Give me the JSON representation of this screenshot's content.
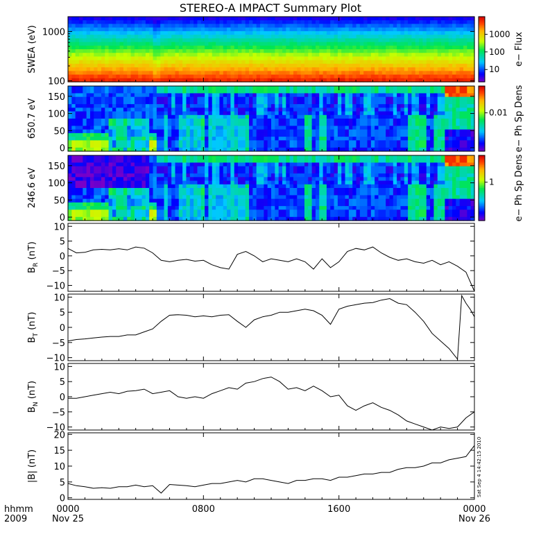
{
  "title": "STEREO-A IMPACT Summary Plot",
  "time_axis": {
    "corner_label_top": "hhmm",
    "corner_label_bottom": "2009",
    "ticks": [
      {
        "t": 0,
        "top": "0000",
        "bottom": "Nov 25"
      },
      {
        "t": 0.3333,
        "top": "0800",
        "bottom": ""
      },
      {
        "t": 0.6667,
        "top": "1600",
        "bottom": ""
      },
      {
        "t": 1,
        "top": "0000",
        "bottom": "Nov 26"
      }
    ]
  },
  "timestamp": "Sat Sep  4 14:42:15 2010",
  "colors": {
    "line": "#000000",
    "frame": "#000000",
    "background": "#ffffff"
  },
  "chart_data": [
    {
      "type": "heatmap",
      "name": "swea",
      "ylabel": "SWEA (eV)",
      "yscale": "log",
      "ylim": [
        95,
        2000
      ],
      "yticks": [
        {
          "v": 100,
          "label": "100"
        },
        {
          "v": 1000,
          "label": "1000"
        }
      ],
      "colorbar": {
        "label": "e− Flux",
        "scale": "log",
        "range": [
          2,
          10000
        ],
        "ticks": [
          {
            "v": 10,
            "label": "10"
          },
          {
            "v": 100,
            "label": "100"
          },
          {
            "v": 1000,
            "label": "1000"
          }
        ]
      }
    },
    {
      "type": "heatmap",
      "name": "pad650",
      "ylabel": "650.7 eV",
      "ylim": [
        -10,
        180
      ],
      "yticks": [
        {
          "v": 0,
          "label": "0"
        },
        {
          "v": 50,
          "label": "50"
        },
        {
          "v": 100,
          "label": "100"
        },
        {
          "v": 150,
          "label": "150"
        }
      ],
      "colorbar": {
        "label": "e− Ph Sp Dens",
        "scale": "log",
        "range": [
          0.001,
          0.05
        ],
        "ticks": [
          {
            "v": 0.01,
            "label": "0.01"
          }
        ]
      }
    },
    {
      "type": "heatmap",
      "name": "pad246",
      "ylabel": "246.6 eV",
      "ylim": [
        -10,
        180
      ],
      "yticks": [
        {
          "v": 0,
          "label": "0"
        },
        {
          "v": 50,
          "label": "50"
        },
        {
          "v": 100,
          "label": "100"
        },
        {
          "v": 150,
          "label": "150"
        }
      ],
      "colorbar": {
        "label": "e− Ph Sp Dens",
        "scale": "log",
        "range": [
          0.1,
          5
        ],
        "ticks": [
          {
            "v": 1,
            "label": "1"
          }
        ]
      }
    },
    {
      "type": "line",
      "name": "br",
      "ylabel": "B",
      "ylabel_sub": "R",
      "ylabel_unit": "(nT)",
      "ylim": [
        -12,
        11
      ],
      "yticks": [
        {
          "v": -10,
          "label": "−10"
        },
        {
          "v": -5,
          "label": "−5"
        },
        {
          "v": 0,
          "label": "0"
        },
        {
          "v": 5,
          "label": "5"
        },
        {
          "v": 10,
          "label": "10"
        }
      ],
      "x_hours": [
        0,
        0.5,
        1,
        1.5,
        2,
        2.5,
        3,
        3.5,
        4,
        4.5,
        5,
        5.5,
        6,
        6.5,
        7,
        7.5,
        8,
        8.5,
        9,
        9.5,
        10,
        10.5,
        11,
        11.5,
        12,
        12.5,
        13,
        13.5,
        14,
        14.5,
        15,
        15.5,
        16,
        16.5,
        17,
        17.5,
        18,
        18.5,
        19,
        19.5,
        20,
        20.5,
        21,
        21.5,
        22,
        22.5,
        23,
        23.5,
        24
      ],
      "values": [
        2.5,
        1,
        1.2,
        2.0,
        2.2,
        2.0,
        2.4,
        2.0,
        3.0,
        2.6,
        1.0,
        -1.5,
        -2.0,
        -1.5,
        -1.2,
        -1.8,
        -1.5,
        -3.0,
        -4.0,
        -4.5,
        0.5,
        1.5,
        0.0,
        -2.0,
        -1.0,
        -1.5,
        -2.0,
        -1.0,
        -2.0,
        -4.5,
        -1.0,
        -4.0,
        -2.0,
        1.5,
        2.5,
        2.0,
        3.0,
        1.0,
        -0.5,
        -1.5,
        -1.0,
        -2.0,
        -2.5,
        -1.5,
        -3.0,
        -2.0,
        -3.5,
        -5.5,
        -12.0
      ]
    },
    {
      "type": "line",
      "name": "bt",
      "ylabel": "B",
      "ylabel_sub": "T",
      "ylabel_unit": "(nT)",
      "ylim": [
        -11,
        11
      ],
      "yticks": [
        {
          "v": -10,
          "label": "−10"
        },
        {
          "v": -5,
          "label": "−5"
        },
        {
          "v": 0,
          "label": "0"
        },
        {
          "v": 5,
          "label": "5"
        },
        {
          "v": 10,
          "label": "10"
        }
      ],
      "x_hours": [
        0,
        0.5,
        1,
        1.5,
        2,
        2.5,
        3,
        3.5,
        4,
        4.5,
        5,
        5.5,
        6,
        6.5,
        7,
        7.5,
        8,
        8.5,
        9,
        9.5,
        10,
        10.5,
        11,
        11.5,
        12,
        12.5,
        13,
        13.5,
        14,
        14.5,
        15,
        15.5,
        16,
        16.5,
        17,
        17.5,
        18,
        18.5,
        19,
        19.5,
        20,
        20.5,
        21,
        21.5,
        22,
        22.5,
        23,
        23.25,
        23.5,
        23.75,
        24
      ],
      "values": [
        -4.5,
        -4.0,
        -3.8,
        -3.5,
        -3.2,
        -3.0,
        -3.0,
        -2.5,
        -2.5,
        -1.5,
        -0.5,
        2.0,
        4.0,
        4.2,
        4.0,
        3.5,
        3.8,
        3.5,
        4.0,
        4.2,
        2.0,
        0.0,
        2.5,
        3.5,
        4.0,
        5.0,
        5.0,
        5.5,
        6.0,
        5.5,
        4.0,
        1.0,
        6.0,
        7.0,
        7.5,
        8.0,
        8.2,
        9.0,
        9.5,
        8.0,
        7.5,
        5.0,
        2.0,
        -2.0,
        -4.5,
        -7.0,
        -10.5,
        10.5,
        8.0,
        6.0,
        3.5
      ]
    },
    {
      "type": "line",
      "name": "bn",
      "ylabel": "B",
      "ylabel_sub": "N",
      "ylabel_unit": "(nT)",
      "ylim": [
        -11,
        11
      ],
      "yticks": [
        {
          "v": -10,
          "label": "−10"
        },
        {
          "v": -5,
          "label": "−5"
        },
        {
          "v": 0,
          "label": "0"
        },
        {
          "v": 5,
          "label": "5"
        },
        {
          "v": 10,
          "label": "10"
        }
      ],
      "x_hours": [
        0,
        0.5,
        1,
        1.5,
        2,
        2.5,
        3,
        3.5,
        4,
        4.5,
        5,
        5.5,
        6,
        6.5,
        7,
        7.5,
        8,
        8.5,
        9,
        9.5,
        10,
        10.5,
        11,
        11.5,
        12,
        12.5,
        13,
        13.5,
        14,
        14.5,
        15,
        15.5,
        16,
        16.5,
        17,
        17.5,
        18,
        18.5,
        19,
        19.5,
        20,
        20.5,
        21,
        21.5,
        22,
        22.5,
        23,
        23.5,
        24
      ],
      "values": [
        -0.5,
        -0.5,
        0.0,
        0.5,
        1.0,
        1.5,
        1.0,
        1.8,
        2.0,
        2.5,
        1.0,
        1.5,
        2.0,
        0.0,
        -0.5,
        0.0,
        -0.5,
        1.0,
        2.0,
        3.0,
        2.5,
        4.5,
        5.0,
        6.0,
        6.5,
        5.0,
        2.5,
        3.0,
        2.0,
        3.5,
        2.0,
        0.0,
        0.5,
        -3.0,
        -4.5,
        -3.0,
        -2.0,
        -3.5,
        -4.5,
        -6.0,
        -8.0,
        -9.0,
        -10.0,
        -11.0,
        -10.0,
        -10.5,
        -10.0,
        -7.0,
        -5.0
      ]
    },
    {
      "type": "line",
      "name": "bmag",
      "ylabel": "|B|",
      "ylabel_sub": "",
      "ylabel_unit": "(nT)",
      "ylim": [
        -0.5,
        20.5
      ],
      "yticks": [
        {
          "v": 0,
          "label": "0"
        },
        {
          "v": 5,
          "label": "5"
        },
        {
          "v": 10,
          "label": "10"
        },
        {
          "v": 15,
          "label": "15"
        },
        {
          "v": 20,
          "label": "20"
        }
      ],
      "x_hours": [
        0,
        0.5,
        1,
        1.5,
        2,
        2.5,
        3,
        3.5,
        4,
        4.5,
        5,
        5.5,
        6,
        6.5,
        7,
        7.5,
        8,
        8.5,
        9,
        9.5,
        10,
        10.5,
        11,
        11.5,
        12,
        12.5,
        13,
        13.5,
        14,
        14.5,
        15,
        15.5,
        16,
        16.5,
        17,
        17.5,
        18,
        18.5,
        19,
        19.5,
        20,
        20.5,
        21,
        21.5,
        22,
        22.5,
        23,
        23.5,
        24
      ],
      "values": [
        4.5,
        3.8,
        3.5,
        3.0,
        3.2,
        3.0,
        3.5,
        3.5,
        4.0,
        3.5,
        3.8,
        1.5,
        4.2,
        4.0,
        3.8,
        3.5,
        4.0,
        4.5,
        4.5,
        5.0,
        5.5,
        5.0,
        6.0,
        6.0,
        5.5,
        5.0,
        4.5,
        5.5,
        5.5,
        6.0,
        6.0,
        5.5,
        6.5,
        6.5,
        7.0,
        7.5,
        7.5,
        8.0,
        8.0,
        9.0,
        9.5,
        9.5,
        10.0,
        11.0,
        11.0,
        12.0,
        12.5,
        13.0,
        16.5
      ]
    }
  ]
}
